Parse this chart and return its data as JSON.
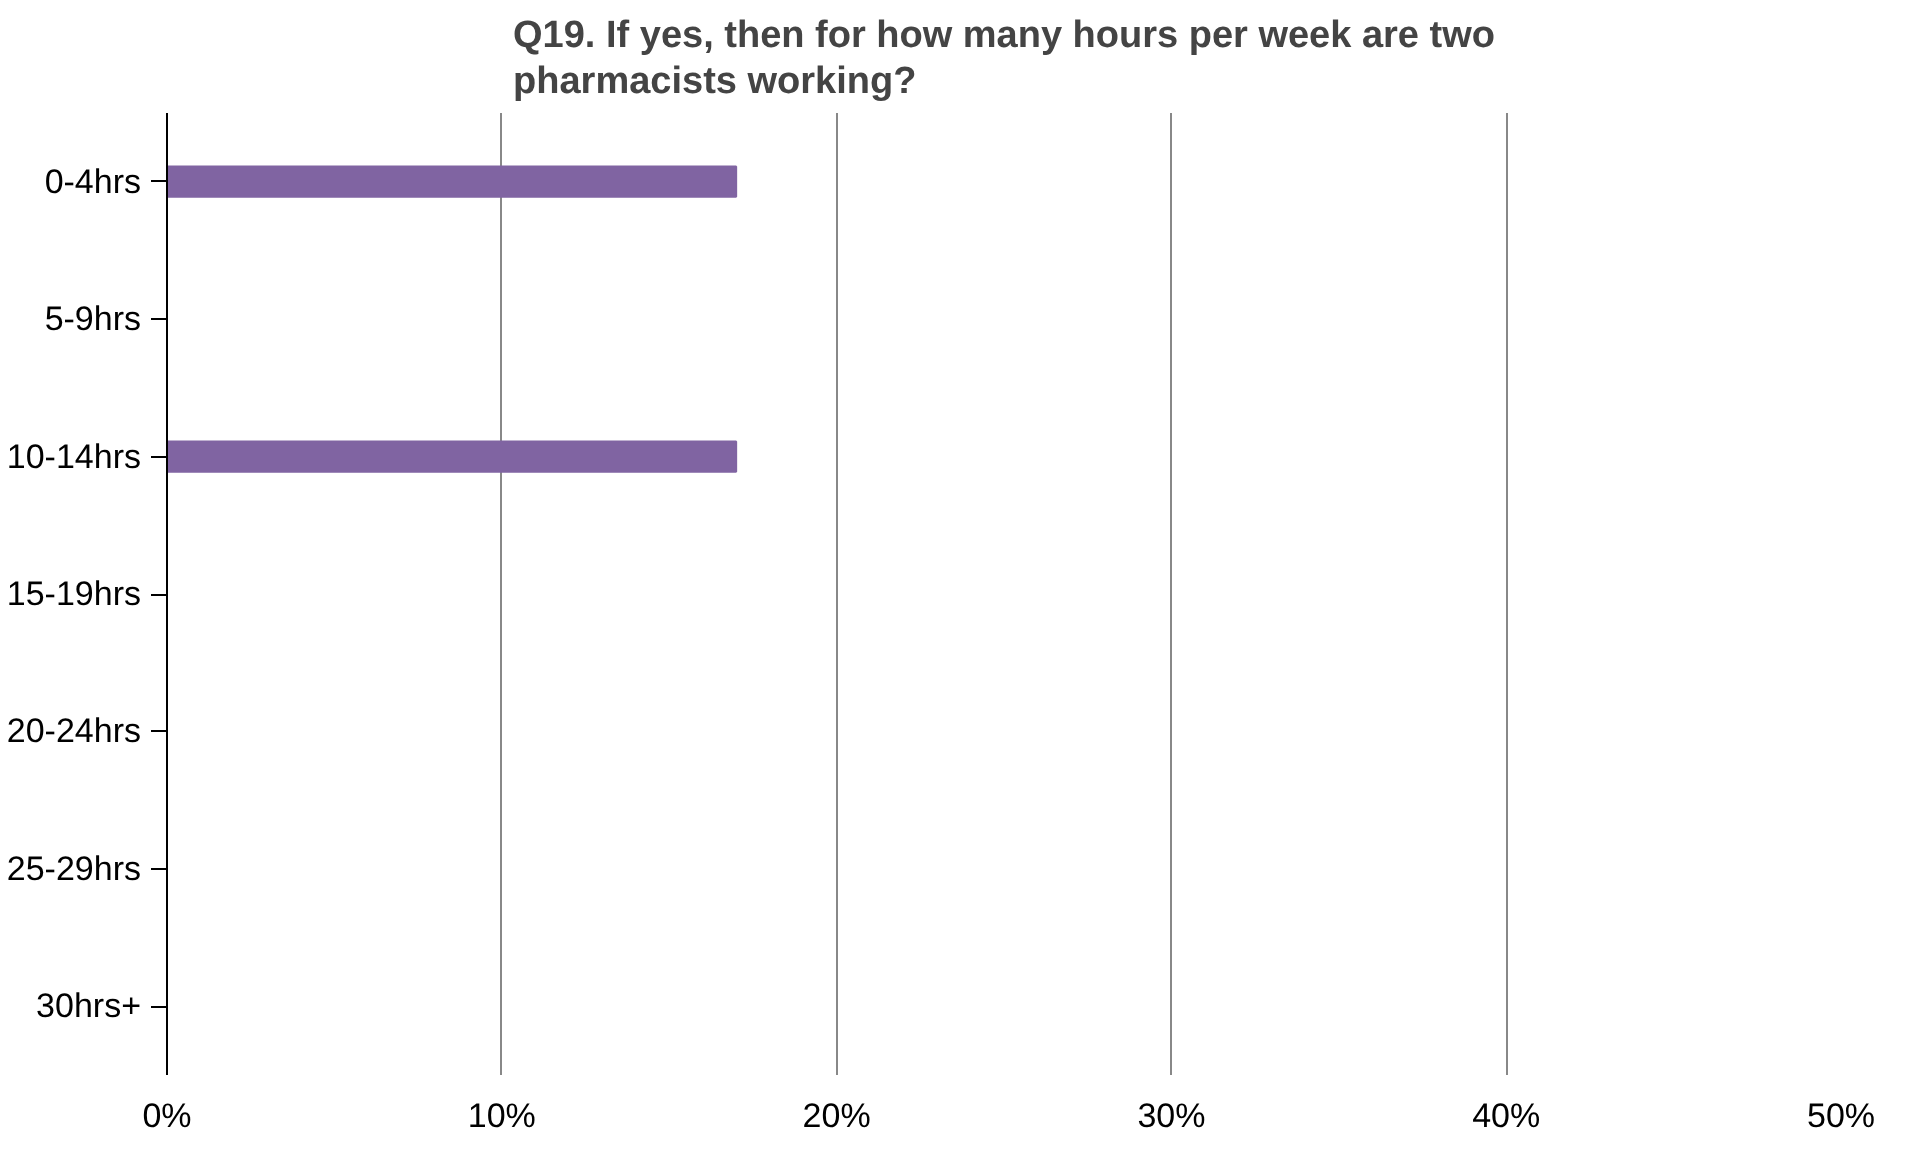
{
  "chart_data": {
    "type": "bar",
    "orientation": "horizontal",
    "title": "Q19. If yes, then for how many hours per week are two pharmacists working?",
    "categories": [
      "0-4hrs",
      "5-9hrs",
      "10-14hrs",
      "15-19hrs",
      "20-24hrs",
      "25-29hrs",
      "30hrs+"
    ],
    "values": [
      17,
      0,
      17,
      0,
      0,
      0,
      0
    ],
    "color": "#8064a2",
    "xlim": [
      0,
      50
    ],
    "xticks": [
      {
        "value": 0,
        "label": "0%"
      },
      {
        "value": 10,
        "label": "10%"
      },
      {
        "value": 20,
        "label": "20%"
      },
      {
        "value": 30,
        "label": "30%"
      },
      {
        "value": 40,
        "label": "40%"
      },
      {
        "value": 50,
        "label": "50%"
      }
    ],
    "grid": "x"
  }
}
